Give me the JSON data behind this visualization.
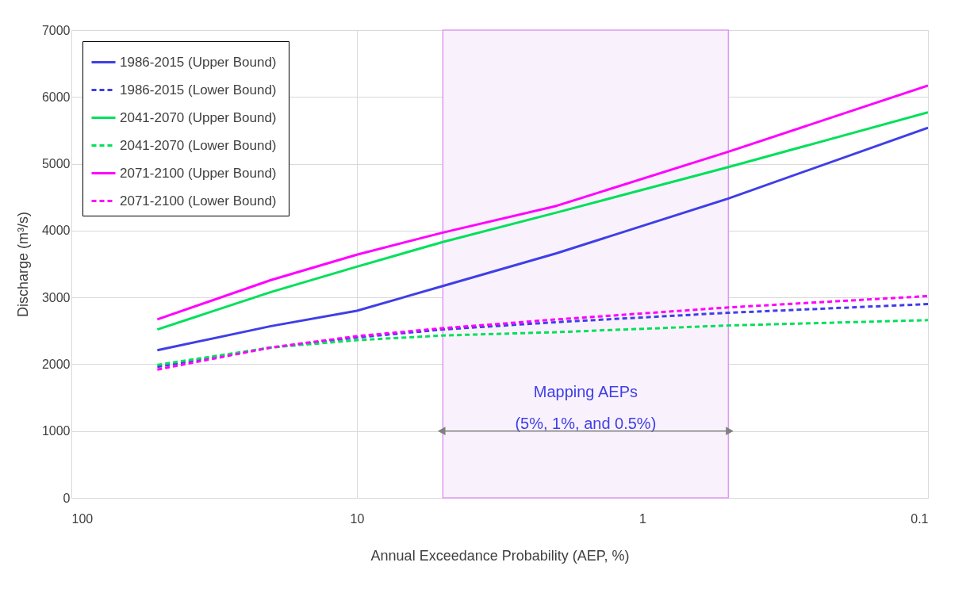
{
  "chart_data": {
    "type": "line",
    "xlabel": "Annual Exceedance Probability (AEP, %)",
    "ylabel": "Discharge (m³/s)",
    "x": [
      50,
      20,
      10,
      5,
      2,
      0.5,
      0.1
    ],
    "log": "x",
    "xlim": [
      100,
      0.1
    ],
    "xticks": [
      100,
      10,
      1,
      0.1
    ],
    "ylim": [
      0,
      7000
    ],
    "yticks": [
      0,
      1000,
      2000,
      3000,
      4000,
      5000,
      6000,
      7000
    ],
    "grid": true,
    "legend": "top left",
    "series": [
      {
        "name": "1986-2015 (Upper Bound)",
        "color": "#3f3fe6",
        "line_style": "solid",
        "values": [
          2210,
          2570,
          2800,
          3170,
          3660,
          4480,
          5540
        ]
      },
      {
        "name": "1986-2015 (Lower Bound)",
        "color": "#3f3fe6",
        "line_style": "dashed",
        "values": [
          1960,
          2250,
          2400,
          2520,
          2630,
          2770,
          2900
        ]
      },
      {
        "name": "2041-2070 (Upper Bound)",
        "color": "#00e05a",
        "line_style": "solid",
        "values": [
          2520,
          3080,
          3460,
          3830,
          4270,
          4950,
          5770
        ]
      },
      {
        "name": "2041-2070 (Lower Bound)",
        "color": "#00e05a",
        "line_style": "dashed",
        "values": [
          1990,
          2250,
          2360,
          2430,
          2480,
          2580,
          2660
        ]
      },
      {
        "name": "2071-2100  (Upper Bound)",
        "color": "#ff00ff",
        "line_style": "solid",
        "values": [
          2670,
          3260,
          3640,
          3970,
          4370,
          5180,
          6170
        ]
      },
      {
        "name": "2071-2100 (Lower Bound)",
        "color": "#ff00ff",
        "line_style": "dashed",
        "values": [
          1920,
          2250,
          2420,
          2540,
          2670,
          2850,
          3020
        ]
      }
    ],
    "bands": [
      {
        "axis": "x",
        "from": 5,
        "to": 0.5,
        "color": "#f9f2fc",
        "label": "Mapping AEPs\n(5%, 1%, and 0.5%)"
      }
    ]
  }
}
